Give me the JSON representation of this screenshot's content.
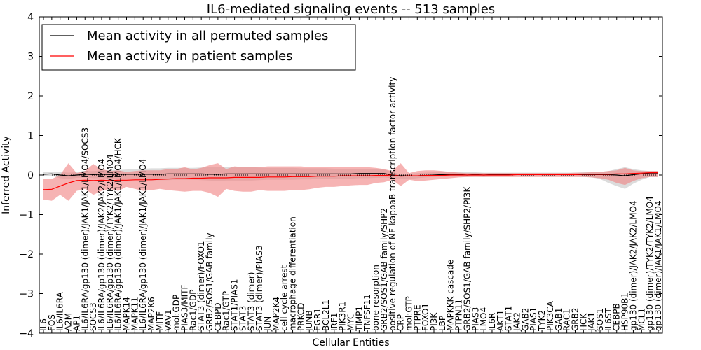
{
  "chart_data": {
    "type": "line",
    "title": "IL6-mediated signaling events -- 513 samples",
    "xlabel": "Cellular Entities",
    "ylabel": "Inferred Activity",
    "ylim": [
      -4,
      4
    ],
    "yticks": [
      -4,
      -3,
      -2,
      -1,
      0,
      1,
      2,
      3,
      4
    ],
    "grid": false,
    "legend_position": "top-left",
    "legend": [
      "Mean activity in all permuted samples",
      "Mean activity in patient samples"
    ],
    "colors": {
      "permuted": "#000000",
      "patient": "#ff0000",
      "band_patient": "#f08080",
      "band_permuted": "#bfbfbf"
    },
    "categories": [
      "IL6",
      "FOS",
      "IL6/IL6RA",
      "A2M",
      "AP1",
      "IL6/IL6RA/gp130 (dimer)/JAK1/JAK1/LMO4/SOCS3",
      "SOCS3",
      "IL6/IL6RA/gp130 (dimer)/JAK2/JAK2/LMO4",
      "IL6/IL6RA/gp130 (dimer)/TYK2/TYK2/LMO4",
      "IL6/IL6RA/gp130 (dimer)/JAK1/JAK1/LMO4/HCK",
      "MAPK14",
      "MAPK11",
      "IL6/IL6RA/gp130 (dimer)/JAK1/JAK1/LMO4",
      "MAP2K6",
      "MITF",
      "VAV1",
      "mol:GDP",
      "PIAS3/MITF",
      "Rac1/GDP",
      "STAT3 (dimer)/FOXO1",
      "GRB2/SOS1/GAB family",
      "CEBPD",
      "Rac1/GTP",
      "STAT1/PIAS1",
      "STAT3",
      "STAT3 (dimer)",
      "STAT3 (dimer)/PIAS3",
      "JUN",
      "MAP2K4",
      "cell cycle arrest",
      "macrophage differentiation",
      "PRKCD",
      "JUNB",
      "EGR1",
      "BCL2L1",
      "IRF1",
      "PIK3R1",
      "MYC",
      "TIMP1",
      "TNFSF11",
      "bone resorption",
      "GRB2/SOS1/GAB family/SHP2",
      "positive regulation of NF-kappaB transcription factor activity",
      "CRP",
      "mol:GTP",
      "PTPRE",
      "FOXO1",
      "PI3K",
      "LBP",
      "MAPKKK cascade",
      "PTPN11",
      "GRB2/SOS1/GAB family/SHP2/PI3K",
      "PIAS3",
      "LMO4",
      "IL6R",
      "AKT1",
      "STAT1",
      "JAK2",
      "GAB2",
      "PIAS1",
      "TYK2",
      "PIK3CA",
      "GAB1",
      "RAC1",
      "GRB2",
      "HCK",
      "JAK1",
      "SOS1",
      "IL6ST",
      "CEBPB",
      "HSP90B1",
      "gp130 (dimer)/JAK2/JAK2/LMO4",
      "MCL1",
      "gp130 (dimer)/TYK2/TYK2/LMO4",
      "gp130 (dimer)/JAK1/JAK1/LMO4"
    ],
    "series": [
      {
        "name": "Mean activity in all permuted samples",
        "values": [
          0.02,
          0.03,
          0.0,
          -0.02,
          0.0,
          0.02,
          0.01,
          0.02,
          0.01,
          0.02,
          0.02,
          0.02,
          0.02,
          0.02,
          0.02,
          0.03,
          0.03,
          0.03,
          0.03,
          0.03,
          0.02,
          0.02,
          0.03,
          0.03,
          0.03,
          0.03,
          0.03,
          0.03,
          0.03,
          0.03,
          0.03,
          0.03,
          0.03,
          0.03,
          0.03,
          0.03,
          0.03,
          0.03,
          0.04,
          0.04,
          0.04,
          0.04,
          0.0,
          -0.02,
          -0.02,
          -0.02,
          -0.01,
          0.0,
          0.01,
          0.01,
          0.01,
          0.0,
          0.01,
          0.0,
          0.01,
          0.01,
          0.01,
          0.01,
          0.01,
          0.01,
          0.01,
          0.01,
          0.01,
          0.01,
          0.01,
          0.01,
          0.01,
          0.01,
          0.01,
          0.0,
          -0.02,
          0.01,
          0.03,
          0.05,
          0.05
        ],
        "upper": [
          0.07,
          0.08,
          0.08,
          0.06,
          0.07,
          0.1,
          0.1,
          0.12,
          0.13,
          0.13,
          0.14,
          0.15,
          0.16,
          0.17,
          0.17,
          0.18,
          0.18,
          0.18,
          0.18,
          0.19,
          0.2,
          0.2,
          0.2,
          0.2,
          0.2,
          0.2,
          0.19,
          0.18,
          0.18,
          0.18,
          0.18,
          0.17,
          0.17,
          0.17,
          0.17,
          0.16,
          0.16,
          0.16,
          0.16,
          0.16,
          0.15,
          0.14,
          0.08,
          0.02,
          0.03,
          0.05,
          0.06,
          0.07,
          0.07,
          0.07,
          0.07,
          0.07,
          0.07,
          0.06,
          0.06,
          0.06,
          0.06,
          0.06,
          0.06,
          0.06,
          0.06,
          0.06,
          0.06,
          0.06,
          0.06,
          0.07,
          0.07,
          0.08,
          0.1,
          0.15,
          0.2,
          0.15,
          0.12,
          0.1,
          0.1
        ],
        "lower": [
          -0.03,
          -0.02,
          -0.08,
          -0.1,
          -0.07,
          -0.06,
          -0.08,
          -0.08,
          -0.1,
          -0.1,
          -0.1,
          -0.11,
          -0.12,
          -0.13,
          -0.13,
          -0.13,
          -0.12,
          -0.12,
          -0.12,
          -0.13,
          -0.14,
          -0.15,
          -0.14,
          -0.14,
          -0.14,
          -0.14,
          -0.13,
          -0.12,
          -0.12,
          -0.12,
          -0.12,
          -0.11,
          -0.11,
          -0.1,
          -0.1,
          -0.09,
          -0.09,
          -0.09,
          -0.08,
          -0.08,
          -0.07,
          -0.06,
          -0.08,
          -0.1,
          -0.1,
          -0.08,
          -0.06,
          -0.05,
          -0.04,
          -0.04,
          -0.04,
          -0.05,
          -0.04,
          -0.05,
          -0.04,
          -0.04,
          -0.04,
          -0.04,
          -0.04,
          -0.04,
          -0.04,
          -0.04,
          -0.04,
          -0.04,
          -0.04,
          -0.05,
          -0.06,
          -0.1,
          -0.2,
          -0.28,
          -0.35,
          -0.22,
          -0.12,
          -0.05,
          -0.05
        ]
      },
      {
        "name": "Mean activity in patient samples",
        "values": [
          -0.37,
          -0.36,
          -0.28,
          -0.2,
          -0.14,
          -0.13,
          -0.14,
          -0.13,
          -0.14,
          -0.13,
          -0.13,
          -0.12,
          -0.12,
          -0.12,
          -0.11,
          -0.1,
          -0.09,
          -0.09,
          -0.08,
          -0.08,
          -0.07,
          -0.07,
          -0.07,
          -0.06,
          -0.06,
          -0.06,
          -0.06,
          -0.05,
          -0.05,
          -0.05,
          -0.04,
          -0.04,
          -0.04,
          -0.03,
          -0.03,
          -0.03,
          -0.02,
          -0.02,
          -0.02,
          -0.02,
          -0.01,
          -0.01,
          0.0,
          -0.03,
          -0.02,
          -0.02,
          -0.01,
          -0.01,
          -0.01,
          0.0,
          0.0,
          0.0,
          0.0,
          0.0,
          0.0,
          0.0,
          0.0,
          0.01,
          0.01,
          0.01,
          0.01,
          0.01,
          0.01,
          0.01,
          0.01,
          0.02,
          0.02,
          0.02,
          0.02,
          0.03,
          0.03,
          0.04,
          0.05,
          0.06,
          0.06
        ],
        "upper": [
          -0.1,
          -0.1,
          0.0,
          0.3,
          0.05,
          0.1,
          0.28,
          0.15,
          0.1,
          0.12,
          0.08,
          0.1,
          0.12,
          0.12,
          0.12,
          0.15,
          0.15,
          0.2,
          0.14,
          0.18,
          0.25,
          0.3,
          0.15,
          0.22,
          0.2,
          0.2,
          0.2,
          0.22,
          0.22,
          0.22,
          0.22,
          0.22,
          0.2,
          0.2,
          0.2,
          0.2,
          0.2,
          0.2,
          0.2,
          0.2,
          0.18,
          0.15,
          0.1,
          0.3,
          0.05,
          0.1,
          0.12,
          0.12,
          0.1,
          0.08,
          0.06,
          0.05,
          0.05,
          0.05,
          0.05,
          0.05,
          0.05,
          0.05,
          0.05,
          0.05,
          0.05,
          0.05,
          0.05,
          0.05,
          0.06,
          0.06,
          0.07,
          0.08,
          0.1,
          0.12,
          0.18,
          0.12,
          0.1,
          0.1,
          0.1
        ],
        "lower": [
          -0.62,
          -0.65,
          -0.5,
          -0.65,
          -0.4,
          -0.35,
          -0.5,
          -0.4,
          -0.35,
          -0.4,
          -0.3,
          -0.35,
          -0.4,
          -0.38,
          -0.35,
          -0.38,
          -0.4,
          -0.42,
          -0.4,
          -0.4,
          -0.45,
          -0.55,
          -0.35,
          -0.4,
          -0.42,
          -0.42,
          -0.38,
          -0.4,
          -0.4,
          -0.4,
          -0.38,
          -0.38,
          -0.36,
          -0.32,
          -0.3,
          -0.3,
          -0.28,
          -0.26,
          -0.25,
          -0.25,
          -0.2,
          -0.18,
          -0.12,
          -0.28,
          -0.12,
          -0.15,
          -0.14,
          -0.12,
          -0.1,
          -0.08,
          -0.06,
          -0.05,
          -0.05,
          -0.05,
          -0.05,
          -0.05,
          -0.05,
          -0.05,
          -0.05,
          -0.05,
          -0.05,
          -0.05,
          -0.05,
          -0.05,
          -0.05,
          -0.05,
          -0.06,
          -0.08,
          -0.12,
          -0.2,
          -0.25,
          -0.15,
          -0.08,
          -0.05,
          -0.05
        ]
      }
    ]
  }
}
